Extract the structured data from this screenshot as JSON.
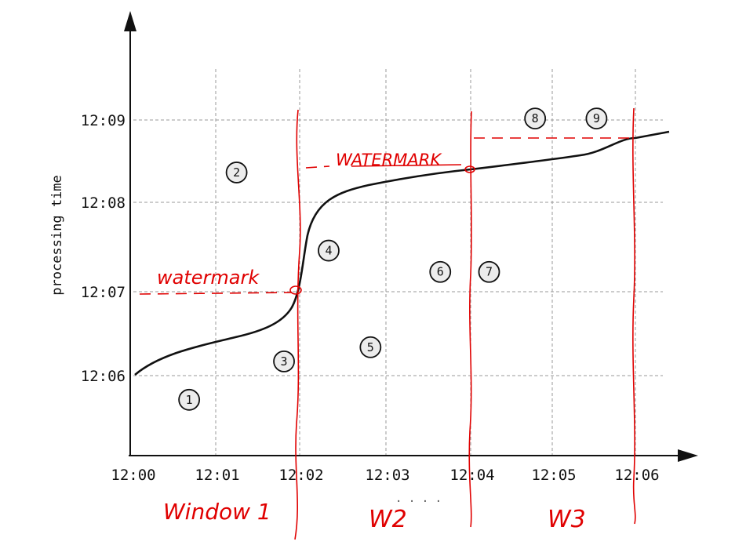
{
  "axes": {
    "y_label": "processing time",
    "x_ticks": [
      "12:00",
      "12:01",
      "12:02",
      "12:03",
      "12:04",
      "12:05",
      "12:06"
    ],
    "y_ticks": [
      "12:06",
      "12:07",
      "12:08",
      "12:09"
    ]
  },
  "events": [
    {
      "label": "1",
      "event_time": "12:00:40",
      "processing_time": "12:05:43"
    },
    {
      "label": "2",
      "event_time": "12:01:14",
      "processing_time": "12:08:23"
    },
    {
      "label": "3",
      "event_time": "12:01:48",
      "processing_time": "12:06:10"
    },
    {
      "label": "4",
      "event_time": "12:02:20",
      "processing_time": "12:07:28"
    },
    {
      "label": "5",
      "event_time": "12:02:50",
      "processing_time": "12:06:20"
    },
    {
      "label": "6",
      "event_time": "12:03:40",
      "processing_time": "12:07:13"
    },
    {
      "label": "7",
      "event_time": "12:04:15",
      "processing_time": "12:07:13"
    },
    {
      "label": "8",
      "event_time": "12:04:48",
      "processing_time": "12:09:01"
    },
    {
      "label": "9",
      "event_time": "12:05:32",
      "processing_time": "12:09:01"
    }
  ],
  "annotations": {
    "watermark_low": "watermark",
    "watermark_high": "WATERMARK",
    "window1": "Window 1",
    "w2": "W2",
    "w3": "W3",
    "ellipsis": ". . . ."
  },
  "colors": {
    "ink": "#111111",
    "grid": "#9a9a9a",
    "annotation": "#e00000"
  }
}
